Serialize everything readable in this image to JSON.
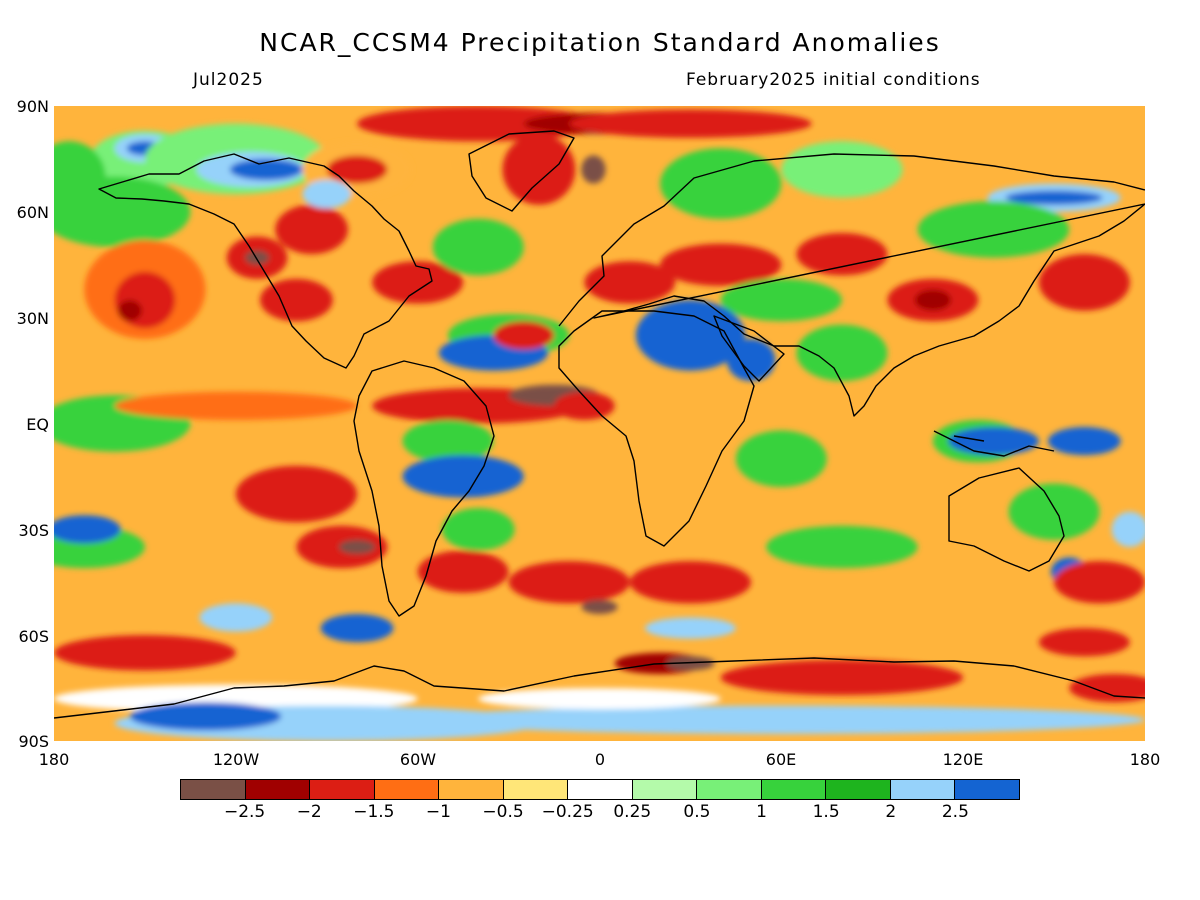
{
  "header": {
    "title": "NCAR_CCSM4 Precipitation Standard Anomalies",
    "target_month": "Jul2025",
    "init": "February2025 initial conditions"
  },
  "axes": {
    "lat_labels": [
      "90N",
      "60N",
      "30N",
      "EQ",
      "30S",
      "60S",
      "90S"
    ],
    "lon_labels": [
      "180",
      "120W",
      "60W",
      "0",
      "60E",
      "120E",
      "180"
    ]
  },
  "colorbar": {
    "colors": [
      "#7a5046",
      "#a00000",
      "#dc1e14",
      "#ff6e14",
      "#ffb43c",
      "#ffe678",
      "#ffffff",
      "#b4faaa",
      "#78f078",
      "#37d23c",
      "#1eb41e",
      "#96d2fa",
      "#1464d2"
    ],
    "labels": [
      "−2.5",
      "−2",
      "−1.5",
      "−1",
      "−0.5",
      "−0.25",
      "0.25",
      "0.5",
      "1",
      "1.5",
      "2",
      "2.5"
    ]
  },
  "map": {
    "background_color": "#ffb43c",
    "patches": [
      {
        "c": 8,
        "lon": -150,
        "lat": 75,
        "r": [
          18,
          8
        ]
      },
      {
        "c": 11,
        "lon": -150,
        "lat": 78,
        "r": [
          10,
          4
        ]
      },
      {
        "c": 12,
        "lon": -150,
        "lat": 78,
        "r": [
          6,
          2
        ]
      },
      {
        "c": 9,
        "lon": -175,
        "lat": 70,
        "r": [
          12,
          10
        ]
      },
      {
        "c": 8,
        "lon": -120,
        "lat": 75,
        "r": [
          30,
          10
        ]
      },
      {
        "c": 11,
        "lon": -115,
        "lat": 72,
        "r": [
          18,
          5
        ]
      },
      {
        "c": 12,
        "lon": -110,
        "lat": 72,
        "r": [
          12,
          3
        ]
      },
      {
        "c": 4,
        "lon": -80,
        "lat": 72,
        "r": [
          18,
          8
        ]
      },
      {
        "c": 2,
        "lon": -80,
        "lat": 72,
        "r": [
          10,
          4
        ]
      },
      {
        "c": 2,
        "lon": -40,
        "lat": 85,
        "r": [
          40,
          5
        ]
      },
      {
        "c": 1,
        "lon": 0,
        "lat": 85,
        "r": [
          25,
          3
        ]
      },
      {
        "c": 0,
        "lon": 0,
        "lat": 84,
        "r": [
          6,
          2
        ]
      },
      {
        "c": 2,
        "lon": 30,
        "lat": 85,
        "r": [
          40,
          4
        ]
      },
      {
        "c": 2,
        "lon": -20,
        "lat": 72,
        "r": [
          12,
          10
        ]
      },
      {
        "c": 0,
        "lon": -2,
        "lat": 72,
        "r": [
          4,
          4
        ]
      },
      {
        "c": 9,
        "lon": 40,
        "lat": 68,
        "r": [
          20,
          10
        ]
      },
      {
        "c": 8,
        "lon": 80,
        "lat": 72,
        "r": [
          20,
          8
        ]
      },
      {
        "c": 11,
        "lon": 150,
        "lat": 64,
        "r": [
          22,
          4
        ]
      },
      {
        "c": 12,
        "lon": 150,
        "lat": 64,
        "r": [
          16,
          2
        ]
      },
      {
        "c": 9,
        "lon": -160,
        "lat": 60,
        "r": [
          25,
          10
        ]
      },
      {
        "c": 3,
        "lon": -150,
        "lat": 38,
        "r": [
          20,
          14
        ]
      },
      {
        "c": 2,
        "lon": -150,
        "lat": 35,
        "r": [
          10,
          8
        ]
      },
      {
        "c": 1,
        "lon": -155,
        "lat": 32,
        "r": [
          4,
          3
        ]
      },
      {
        "c": 2,
        "lon": -113,
        "lat": 47,
        "r": [
          10,
          6
        ]
      },
      {
        "c": 0,
        "lon": -113,
        "lat": 47,
        "r": [
          4,
          2
        ]
      },
      {
        "c": 2,
        "lon": -95,
        "lat": 55,
        "r": [
          12,
          7
        ]
      },
      {
        "c": 2,
        "lon": -100,
        "lat": 35,
        "r": [
          12,
          6
        ]
      },
      {
        "c": 2,
        "lon": -60,
        "lat": 40,
        "r": [
          15,
          6
        ]
      },
      {
        "c": 9,
        "lon": -40,
        "lat": 50,
        "r": [
          15,
          8
        ]
      },
      {
        "c": 11,
        "lon": -90,
        "lat": 65,
        "r": [
          8,
          4
        ]
      },
      {
        "c": 9,
        "lon": -30,
        "lat": 25,
        "r": [
          20,
          6
        ]
      },
      {
        "c": 12,
        "lon": -35,
        "lat": 20,
        "r": [
          18,
          5
        ]
      },
      {
        "c": 2,
        "lon": -25,
        "lat": 25,
        "r": [
          10,
          4
        ]
      },
      {
        "c": 2,
        "lon": 10,
        "lat": 40,
        "r": [
          15,
          6
        ]
      },
      {
        "c": 2,
        "lon": 40,
        "lat": 45,
        "r": [
          20,
          6
        ]
      },
      {
        "c": 2,
        "lon": 80,
        "lat": 48,
        "r": [
          15,
          6
        ]
      },
      {
        "c": 2,
        "lon": 110,
        "lat": 35,
        "r": [
          15,
          6
        ]
      },
      {
        "c": 1,
        "lon": 110,
        "lat": 35,
        "r": [
          6,
          3
        ]
      },
      {
        "c": 2,
        "lon": 160,
        "lat": 40,
        "r": [
          15,
          8
        ]
      },
      {
        "c": 9,
        "lon": 130,
        "lat": 55,
        "r": [
          25,
          8
        ]
      },
      {
        "c": 9,
        "lon": 60,
        "lat": 35,
        "r": [
          20,
          6
        ]
      },
      {
        "c": 12,
        "lon": 30,
        "lat": 25,
        "r": [
          18,
          10
        ]
      },
      {
        "c": 12,
        "lon": 50,
        "lat": 18,
        "r": [
          8,
          6
        ]
      },
      {
        "c": 9,
        "lon": 80,
        "lat": 20,
        "r": [
          15,
          8
        ]
      },
      {
        "c": 9,
        "lon": -160,
        "lat": 0,
        "r": [
          25,
          8
        ]
      },
      {
        "c": 3,
        "lon": -120,
        "lat": 5,
        "r": [
          40,
          4
        ]
      },
      {
        "c": 2,
        "lon": -40,
        "lat": 5,
        "r": [
          35,
          5
        ]
      },
      {
        "c": 0,
        "lon": -15,
        "lat": 8,
        "r": [
          15,
          3
        ]
      },
      {
        "c": 2,
        "lon": -5,
        "lat": 5,
        "r": [
          10,
          4
        ]
      },
      {
        "c": 9,
        "lon": -50,
        "lat": -5,
        "r": [
          15,
          6
        ]
      },
      {
        "c": 12,
        "lon": -45,
        "lat": -15,
        "r": [
          20,
          6
        ]
      },
      {
        "c": 9,
        "lon": -40,
        "lat": -30,
        "r": [
          12,
          6
        ]
      },
      {
        "c": 2,
        "lon": -100,
        "lat": -20,
        "r": [
          20,
          8
        ]
      },
      {
        "c": 2,
        "lon": -85,
        "lat": -35,
        "r": [
          15,
          6
        ]
      },
      {
        "c": 0,
        "lon": -80,
        "lat": -35,
        "r": [
          6,
          2
        ]
      },
      {
        "c": 2,
        "lon": -45,
        "lat": -42,
        "r": [
          15,
          6
        ]
      },
      {
        "c": 2,
        "lon": -10,
        "lat": -45,
        "r": [
          20,
          6
        ]
      },
      {
        "c": 0,
        "lon": 0,
        "lat": -52,
        "r": [
          6,
          2
        ]
      },
      {
        "c": 2,
        "lon": 30,
        "lat": -45,
        "r": [
          20,
          6
        ]
      },
      {
        "c": 9,
        "lon": 80,
        "lat": -35,
        "r": [
          25,
          6
        ]
      },
      {
        "c": 9,
        "lon": 60,
        "lat": -10,
        "r": [
          15,
          8
        ]
      },
      {
        "c": 9,
        "lon": -170,
        "lat": -35,
        "r": [
          20,
          6
        ]
      },
      {
        "c": 12,
        "lon": -170,
        "lat": -30,
        "r": [
          12,
          4
        ]
      },
      {
        "c": 12,
        "lon": -80,
        "lat": -58,
        "r": [
          12,
          4
        ]
      },
      {
        "c": 11,
        "lon": -120,
        "lat": -55,
        "r": [
          12,
          4
        ]
      },
      {
        "c": 11,
        "lon": 30,
        "lat": -58,
        "r": [
          15,
          3
        ]
      },
      {
        "c": 9,
        "lon": 125,
        "lat": -5,
        "r": [
          15,
          6
        ]
      },
      {
        "c": 12,
        "lon": 130,
        "lat": -5,
        "r": [
          15,
          4
        ]
      },
      {
        "c": 9,
        "lon": 150,
        "lat": -25,
        "r": [
          15,
          8
        ]
      },
      {
        "c": 12,
        "lon": 160,
        "lat": -5,
        "r": [
          12,
          4
        ]
      },
      {
        "c": 11,
        "lon": 175,
        "lat": -30,
        "r": [
          6,
          5
        ]
      },
      {
        "c": 12,
        "lon": 155,
        "lat": -42,
        "r": [
          6,
          4
        ]
      },
      {
        "c": 2,
        "lon": 165,
        "lat": -45,
        "r": [
          15,
          6
        ]
      },
      {
        "c": 2,
        "lon": 160,
        "lat": -62,
        "r": [
          15,
          4
        ]
      },
      {
        "c": 2,
        "lon": -150,
        "lat": -65,
        "r": [
          30,
          5
        ]
      },
      {
        "c": 2,
        "lon": 80,
        "lat": -72,
        "r": [
          40,
          5
        ]
      },
      {
        "c": 1,
        "lon": 20,
        "lat": -68,
        "r": [
          15,
          3
        ]
      },
      {
        "c": 0,
        "lon": 30,
        "lat": -68,
        "r": [
          8,
          2
        ]
      },
      {
        "c": 2,
        "lon": 170,
        "lat": -75,
        "r": [
          15,
          4
        ]
      },
      {
        "c": 6,
        "lon": -120,
        "lat": -78,
        "r": [
          60,
          4
        ]
      },
      {
        "c": 11,
        "lon": -90,
        "lat": -85,
        "r": [
          70,
          5
        ]
      },
      {
        "c": 12,
        "lon": -130,
        "lat": -83,
        "r": [
          25,
          4
        ]
      },
      {
        "c": 11,
        "lon": 60,
        "lat": -84,
        "r": [
          120,
          4
        ]
      },
      {
        "c": 6,
        "lon": 0,
        "lat": -78,
        "r": [
          40,
          3
        ]
      }
    ]
  }
}
